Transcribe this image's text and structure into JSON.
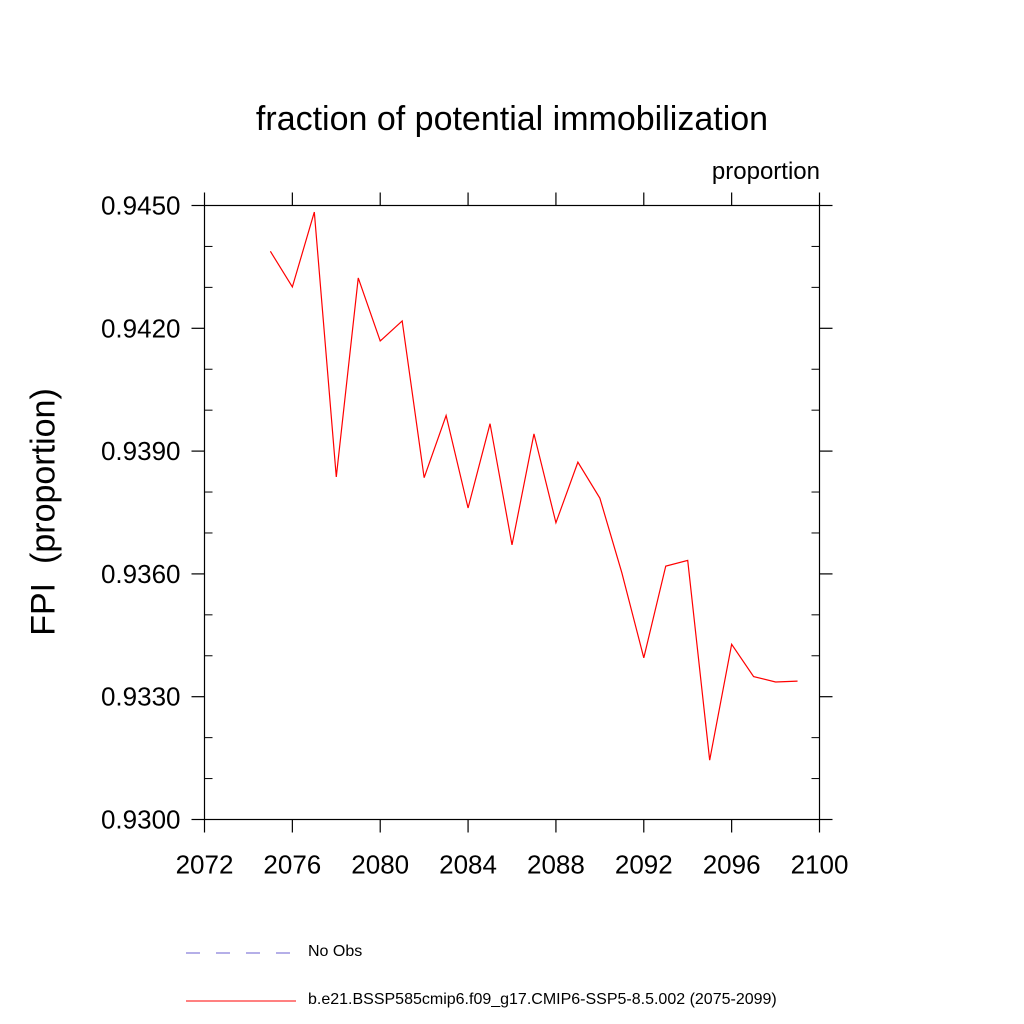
{
  "chart_data": {
    "type": "line",
    "title": "fraction of potential immobilization",
    "units_label": "proportion",
    "ylabel": "FPI  (proportion)",
    "xlabel": "",
    "xlim": [
      2072,
      2100
    ],
    "ylim": [
      0.93,
      0.945
    ],
    "x_ticks": [
      2072,
      2076,
      2080,
      2084,
      2088,
      2092,
      2096,
      2100
    ],
    "x_tick_labels": [
      "2072",
      "2076",
      "2080",
      "2084",
      "2088",
      "2092",
      "2096",
      "2100"
    ],
    "y_ticks": [
      0.93,
      0.933,
      0.936,
      0.939,
      0.942,
      0.945
    ],
    "y_tick_labels": [
      "0.9300",
      "0.9330",
      "0.9360",
      "0.9390",
      "0.9420",
      "0.9450"
    ],
    "grid": false,
    "legend_position": "bottom",
    "series": [
      {
        "name": "b.e21.BSSP585cmip6.f09_g17.CMIP6-SSP5-8.5.002 (2075-2099)",
        "color": "#ff0000",
        "style": "solid",
        "x": [
          2075,
          2076,
          2077,
          2078,
          2079,
          2080,
          2081,
          2082,
          2083,
          2084,
          2085,
          2086,
          2087,
          2088,
          2089,
          2090,
          2091,
          2092,
          2093,
          2094,
          2095,
          2096,
          2097,
          2098,
          2099
        ],
        "y": [
          0.94388,
          0.94301,
          0.94484,
          0.93837,
          0.94323,
          0.94169,
          0.94218,
          0.93835,
          0.93987,
          0.93761,
          0.93967,
          0.93671,
          0.93942,
          0.93725,
          0.93873,
          0.93785,
          0.93603,
          0.93395,
          0.93619,
          0.93633,
          0.93145,
          0.93428,
          0.93349,
          0.93336,
          0.93338
        ]
      },
      {
        "name": "No Obs",
        "color": "#6b5fd0",
        "style": "dashed",
        "x": [],
        "y": []
      }
    ]
  }
}
